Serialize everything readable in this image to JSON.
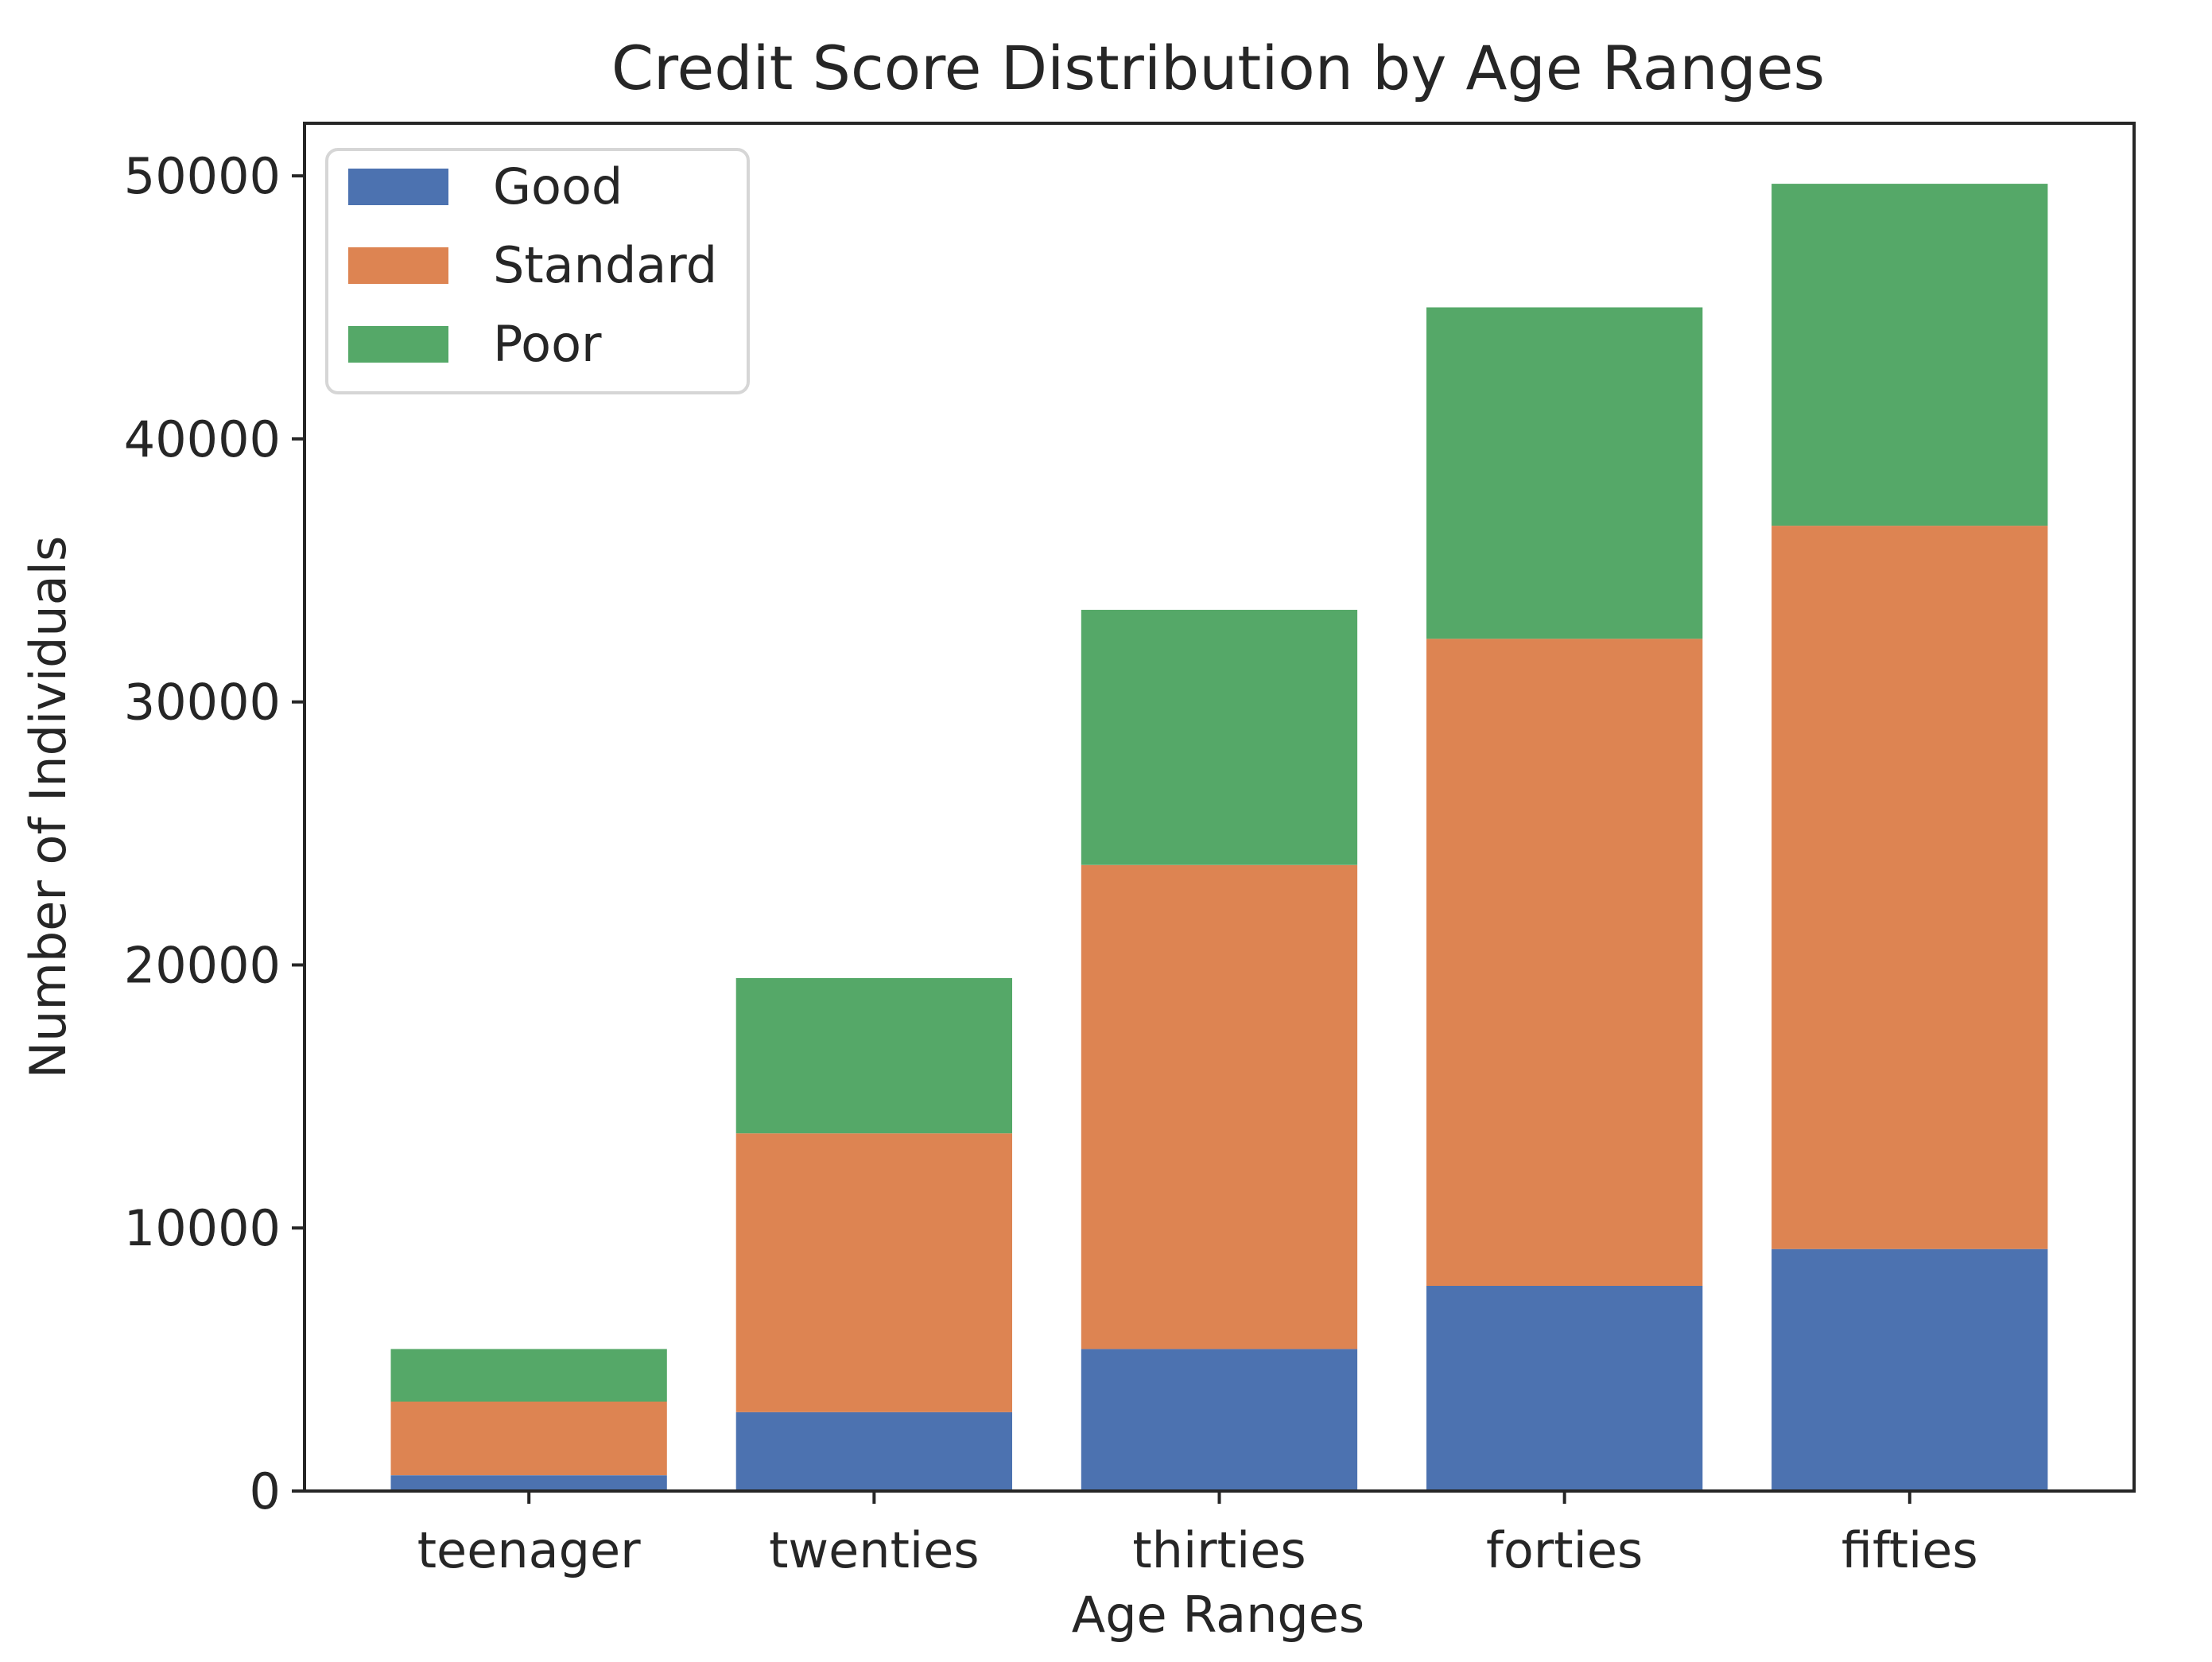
{
  "chart_data": {
    "type": "bar",
    "stacked": true,
    "title": "Credit Score Distribution by Age Ranges",
    "xlabel": "Age Ranges",
    "ylabel": "Number of Individuals",
    "categories": [
      "teenager",
      "twenties",
      "thirties",
      "forties",
      "fifties"
    ],
    "series": [
      {
        "name": "Good",
        "color": "#4c72b0",
        "values": [
          600,
          3000,
          5400,
          7800,
          9200
        ]
      },
      {
        "name": "Standard",
        "color": "#dd8452",
        "values": [
          2800,
          10600,
          18400,
          24600,
          27500
        ]
      },
      {
        "name": "Poor",
        "color": "#55a868",
        "values": [
          2000,
          5900,
          9700,
          12600,
          13000
        ]
      }
    ],
    "ylim": [
      0,
      52000
    ],
    "yticks": [
      0,
      10000,
      20000,
      30000,
      40000,
      50000
    ],
    "ytick_labels": [
      "0",
      "10000",
      "20000",
      "30000",
      "40000",
      "50000"
    ],
    "grid": false,
    "legend_position": "upper-left"
  }
}
